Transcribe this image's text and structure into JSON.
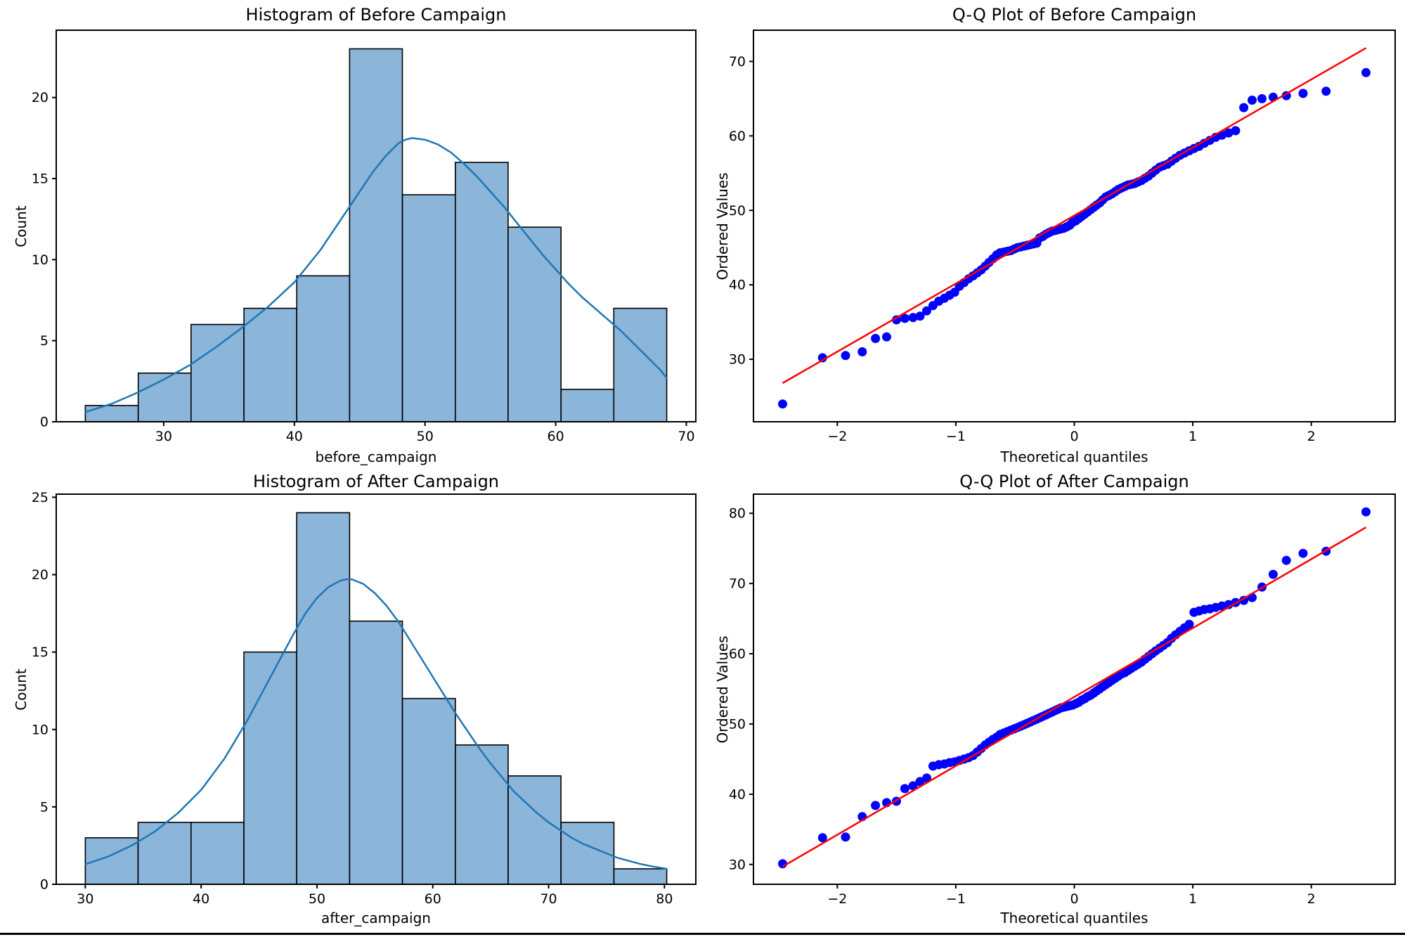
{
  "figure": {
    "background": "#ffffff",
    "bottom_border_color": "#000000",
    "text_color": "#000000",
    "spine_color": "#000000"
  },
  "chart_data": [
    {
      "id": "hist-before",
      "type": "bar",
      "subtype": "histogram-with-kde",
      "title": "Histogram of Before Campaign",
      "xlabel": "before_campaign",
      "ylabel": "Count",
      "xlim": [
        21.775,
        70.725
      ],
      "ylim": [
        0,
        24.15
      ],
      "xticks": {
        "values": [
          30,
          40,
          50,
          60,
          70
        ],
        "labels": [
          "30",
          "40",
          "50",
          "60",
          "70"
        ]
      },
      "yticks": {
        "values": [
          0,
          5,
          10,
          15,
          20
        ],
        "labels": [
          "0",
          "5",
          "10",
          "15",
          "20"
        ]
      },
      "bin_edges": [
        24.0,
        28.05,
        32.09,
        36.14,
        40.18,
        44.23,
        48.27,
        52.32,
        56.36,
        60.41,
        64.45,
        68.5
      ],
      "counts": [
        1,
        3,
        6,
        7,
        9,
        23,
        14,
        16,
        12,
        2,
        7
      ],
      "kde": {
        "x": [
          24,
          26,
          28,
          30,
          32,
          34,
          36,
          38,
          40,
          42,
          44,
          45,
          46,
          47,
          48,
          48.5,
          49,
          50,
          51,
          52,
          53,
          54,
          55,
          56,
          57,
          58,
          59,
          60,
          61,
          62,
          63,
          64,
          65,
          66,
          67,
          68,
          68.5
        ],
        "y": [
          0.6,
          1.1,
          1.8,
          2.6,
          3.5,
          4.6,
          5.8,
          7.1,
          8.6,
          10.6,
          13.0,
          14.2,
          15.4,
          16.4,
          17.2,
          17.4,
          17.5,
          17.4,
          17.1,
          16.6,
          15.9,
          15.1,
          14.2,
          13.3,
          12.3,
          11.3,
          10.3,
          9.4,
          8.5,
          7.7,
          7.0,
          6.3,
          5.6,
          4.8,
          4.0,
          3.2,
          2.7
        ]
      },
      "colors": {
        "bar_fill": "#8bb5d9",
        "bar_edge": "#000000",
        "kde_line": "#1f77b4"
      }
    },
    {
      "id": "qq-before",
      "type": "scatter",
      "subtype": "qq-plot",
      "title": "Q-Q Plot of Before Campaign",
      "xlabel": "Theoretical quantiles",
      "ylabel": "Ordered Values",
      "xlim": [
        -2.708,
        2.708
      ],
      "ylim": [
        21.61,
        74.19
      ],
      "xticks": {
        "values": [
          -2,
          -1,
          0,
          1,
          2
        ],
        "labels": [
          "−2",
          "−1",
          "0",
          "1",
          "2"
        ]
      },
      "yticks": {
        "values": [
          30,
          40,
          50,
          60,
          70
        ],
        "labels": [
          "30",
          "40",
          "50",
          "60",
          "70"
        ]
      },
      "points": {
        "x": [
          -2.462,
          -2.125,
          -1.931,
          -1.79,
          -1.678,
          -1.584,
          -1.501,
          -1.43,
          -1.361,
          -1.302,
          -1.246,
          -1.193,
          -1.144,
          -1.097,
          -1.053,
          -1.01,
          -0.97,
          -0.93,
          -0.892,
          -0.855,
          -0.82,
          -0.786,
          -0.752,
          -0.72,
          -0.687,
          -0.656,
          -0.626,
          -0.595,
          -0.566,
          -0.537,
          -0.508,
          -0.48,
          -0.452,
          -0.425,
          -0.397,
          -0.37,
          -0.344,
          -0.317,
          -0.291,
          -0.265,
          -0.239,
          -0.214,
          -0.188,
          -0.163,
          -0.138,
          -0.113,
          -0.088,
          -0.063,
          -0.038,
          -0.013,
          0.013,
          0.038,
          0.063,
          0.088,
          0.113,
          0.138,
          0.163,
          0.188,
          0.214,
          0.239,
          0.265,
          0.291,
          0.317,
          0.344,
          0.37,
          0.397,
          0.425,
          0.452,
          0.48,
          0.508,
          0.537,
          0.566,
          0.595,
          0.626,
          0.656,
          0.687,
          0.72,
          0.752,
          0.786,
          0.82,
          0.855,
          0.892,
          0.93,
          0.97,
          1.01,
          1.053,
          1.097,
          1.144,
          1.193,
          1.246,
          1.302,
          1.361,
          1.43,
          1.501,
          1.584,
          1.678,
          1.79,
          1.931,
          2.125,
          2.462
        ],
        "y": [
          24.0,
          30.2,
          30.5,
          31.0,
          32.8,
          33.0,
          35.3,
          35.5,
          35.6,
          35.8,
          36.5,
          37.2,
          37.8,
          38.2,
          38.6,
          39.0,
          39.8,
          40.3,
          40.8,
          41.2,
          41.6,
          42.0,
          42.5,
          43.0,
          43.5,
          44.0,
          44.3,
          44.4,
          44.5,
          44.6,
          44.8,
          45.0,
          45.1,
          45.2,
          45.3,
          45.4,
          45.5,
          45.6,
          46.3,
          46.5,
          46.8,
          47.0,
          47.2,
          47.3,
          47.4,
          47.5,
          47.6,
          47.8,
          48.0,
          48.4,
          48.6,
          48.9,
          49.2,
          49.5,
          49.8,
          50.1,
          50.4,
          50.7,
          51.0,
          51.4,
          51.8,
          52.0,
          52.2,
          52.5,
          52.8,
          53.0,
          53.2,
          53.4,
          53.5,
          53.6,
          53.8,
          54.0,
          54.3,
          54.6,
          55.0,
          55.4,
          55.8,
          56.0,
          56.2,
          56.6,
          57.0,
          57.4,
          57.7,
          58.0,
          58.3,
          58.6,
          59.0,
          59.4,
          59.8,
          60.1,
          60.4,
          60.7,
          63.8,
          64.8,
          65.0,
          65.2,
          65.4,
          65.7,
          66.0,
          68.5
        ]
      },
      "fit_line": {
        "x1": -2.462,
        "y1": 26.8,
        "x2": 2.462,
        "y2": 71.8
      },
      "colors": {
        "point": "#0000ff",
        "line": "#ff0000"
      }
    },
    {
      "id": "hist-after",
      "type": "bar",
      "subtype": "histogram-with-kde",
      "title": "Histogram of After Campaign",
      "xlabel": "after_campaign",
      "ylabel": "Count",
      "xlim": [
        27.49,
        82.71
      ],
      "ylim": [
        0,
        25.2
      ],
      "xticks": {
        "values": [
          30,
          40,
          50,
          60,
          70,
          80
        ],
        "labels": [
          "30",
          "40",
          "50",
          "60",
          "70",
          "80"
        ]
      },
      "yticks": {
        "values": [
          0,
          5,
          10,
          15,
          20,
          25
        ],
        "labels": [
          "0",
          "5",
          "10",
          "15",
          "20",
          "25"
        ]
      },
      "bin_edges": [
        30.0,
        34.56,
        39.13,
        43.69,
        48.25,
        52.82,
        57.38,
        61.95,
        66.51,
        71.07,
        75.64,
        80.2
      ],
      "counts": [
        3,
        4,
        4,
        15,
        24,
        17,
        12,
        9,
        7,
        4,
        1
      ],
      "kde": {
        "x": [
          30,
          32,
          34,
          36,
          38,
          40,
          42,
          44,
          46,
          48,
          49,
          50,
          51,
          52,
          52.5,
          53,
          54,
          55,
          56,
          57,
          58,
          59,
          60,
          61,
          62,
          63,
          64,
          65,
          66,
          67,
          68,
          69,
          70,
          71,
          72,
          73,
          74,
          75,
          76,
          77,
          78,
          79,
          80.2
        ],
        "y": [
          1.3,
          1.8,
          2.5,
          3.4,
          4.6,
          6.1,
          8.1,
          10.6,
          13.4,
          16.2,
          17.5,
          18.5,
          19.2,
          19.6,
          19.7,
          19.7,
          19.4,
          18.8,
          18.0,
          17.0,
          15.8,
          14.6,
          13.4,
          12.2,
          11.0,
          9.9,
          8.8,
          7.8,
          6.9,
          6.0,
          5.3,
          4.6,
          4.0,
          3.5,
          3.0,
          2.6,
          2.3,
          2.0,
          1.7,
          1.5,
          1.3,
          1.15,
          1.0
        ]
      },
      "colors": {
        "bar_fill": "#8bb5d9",
        "bar_edge": "#000000",
        "kde_line": "#1f77b4"
      }
    },
    {
      "id": "qq-after",
      "type": "scatter",
      "subtype": "qq-plot",
      "title": "Q-Q Plot of After Campaign",
      "xlabel": "Theoretical quantiles",
      "ylabel": "Ordered Values",
      "xlim": [
        -2.708,
        2.708
      ],
      "ylim": [
        27.175,
        82.725
      ],
      "xticks": {
        "values": [
          -2,
          -1,
          0,
          1,
          2
        ],
        "labels": [
          "−2",
          "−1",
          "0",
          "1",
          "2"
        ]
      },
      "yticks": {
        "values": [
          30,
          40,
          50,
          60,
          70,
          80
        ],
        "labels": [
          "30",
          "40",
          "50",
          "60",
          "70",
          "80"
        ]
      },
      "points": {
        "x": [
          -2.462,
          -2.125,
          -1.931,
          -1.79,
          -1.678,
          -1.584,
          -1.501,
          -1.43,
          -1.361,
          -1.302,
          -1.246,
          -1.193,
          -1.144,
          -1.097,
          -1.053,
          -1.01,
          -0.97,
          -0.93,
          -0.892,
          -0.855,
          -0.82,
          -0.786,
          -0.752,
          -0.72,
          -0.687,
          -0.656,
          -0.626,
          -0.595,
          -0.566,
          -0.537,
          -0.508,
          -0.48,
          -0.452,
          -0.425,
          -0.397,
          -0.37,
          -0.344,
          -0.317,
          -0.291,
          -0.265,
          -0.239,
          -0.214,
          -0.188,
          -0.163,
          -0.138,
          -0.113,
          -0.088,
          -0.063,
          -0.038,
          -0.013,
          0.013,
          0.038,
          0.063,
          0.088,
          0.113,
          0.138,
          0.163,
          0.188,
          0.214,
          0.239,
          0.265,
          0.291,
          0.317,
          0.344,
          0.37,
          0.397,
          0.425,
          0.452,
          0.48,
          0.508,
          0.537,
          0.566,
          0.595,
          0.626,
          0.656,
          0.687,
          0.72,
          0.752,
          0.786,
          0.82,
          0.855,
          0.892,
          0.93,
          0.97,
          1.01,
          1.053,
          1.097,
          1.144,
          1.193,
          1.246,
          1.302,
          1.361,
          1.43,
          1.501,
          1.584,
          1.678,
          1.79,
          1.931,
          2.125,
          2.462
        ],
        "y": [
          30.1,
          33.8,
          33.9,
          36.8,
          38.4,
          38.8,
          39.0,
          40.8,
          41.2,
          41.8,
          42.3,
          44.0,
          44.2,
          44.3,
          44.5,
          44.6,
          44.8,
          45.0,
          45.2,
          45.5,
          46.0,
          46.5,
          47.0,
          47.4,
          47.8,
          48.1,
          48.5,
          48.7,
          48.9,
          49.1,
          49.3,
          49.5,
          49.7,
          49.9,
          50.1,
          50.3,
          50.5,
          50.7,
          50.9,
          51.1,
          51.3,
          51.5,
          51.7,
          51.9,
          52.1,
          52.3,
          52.4,
          52.5,
          52.6,
          52.7,
          52.9,
          53.1,
          53.4,
          53.6,
          53.9,
          54.1,
          54.4,
          54.7,
          55.0,
          55.3,
          55.6,
          55.9,
          56.2,
          56.5,
          56.8,
          57.1,
          57.3,
          57.6,
          57.9,
          58.2,
          58.5,
          58.8,
          59.2,
          59.6,
          60.0,
          60.4,
          60.8,
          61.2,
          61.6,
          62.2,
          62.7,
          63.2,
          63.7,
          64.2,
          65.9,
          66.1,
          66.3,
          66.4,
          66.6,
          66.8,
          67.0,
          67.3,
          67.6,
          68.0,
          69.5,
          71.3,
          73.3,
          74.3,
          74.6,
          80.2
        ]
      },
      "fit_line": {
        "x1": -2.462,
        "y1": 29.7,
        "x2": 2.462,
        "y2": 78.0
      },
      "colors": {
        "point": "#0000ff",
        "line": "#ff0000"
      }
    }
  ]
}
